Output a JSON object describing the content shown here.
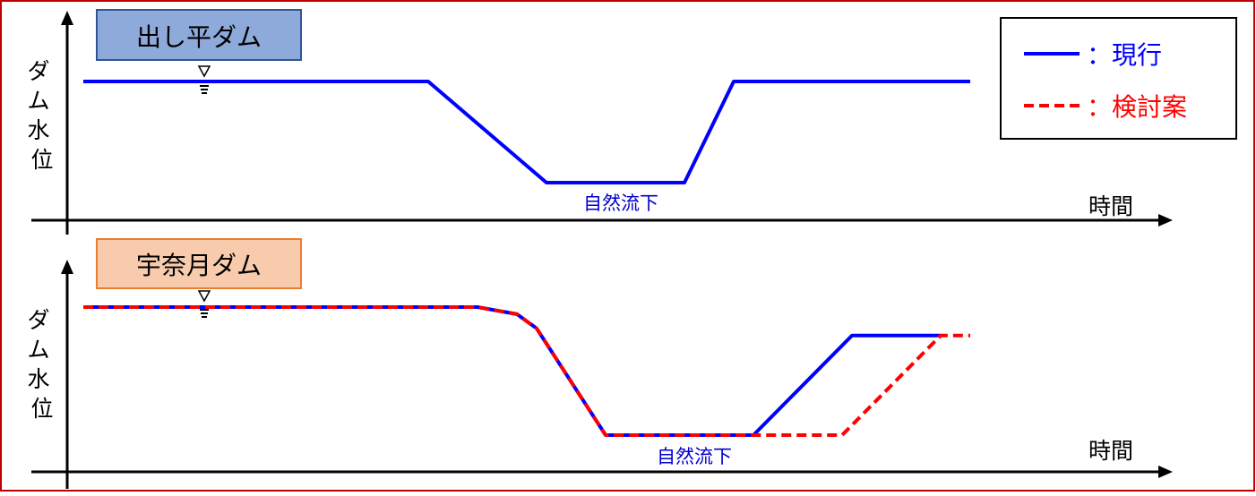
{
  "colors": {
    "frame": "#c00000",
    "current": "#0000ff",
    "proposal": "#ff0000",
    "axis": "#000000",
    "dashi_label_fill": "#8eaadb",
    "dashi_label_stroke": "#2f5597",
    "unazuki_label_fill": "#f8cbad",
    "unazuki_label_stroke": "#ed7d31",
    "annotation_text": "#0000cc"
  },
  "legend": {
    "current_label": "：現行",
    "proposal_label": "：検討案"
  },
  "chart_data": [
    {
      "type": "line",
      "title": "出し平ダム",
      "xlabel": "時間",
      "ylabel": "ダム水位",
      "annotation": "自然流下",
      "series": [
        {
          "name": "：現行",
          "points": [
            [
              0,
              100
            ],
            [
              35,
              100
            ],
            [
              47,
              10
            ],
            [
              61,
              10
            ],
            [
              66,
              100
            ],
            [
              90,
              100
            ]
          ]
        }
      ]
    },
    {
      "type": "line",
      "title": "宇奈月ダム",
      "xlabel": "時間",
      "ylabel": "ダム水位",
      "annotation": "自然流下",
      "series": [
        {
          "name": "：現行",
          "points": [
            [
              0,
              100
            ],
            [
              40,
              100
            ],
            [
              44,
              95
            ],
            [
              46,
              85
            ],
            [
              53,
              10
            ],
            [
              68,
              10
            ],
            [
              78,
              80
            ],
            [
              87,
              80
            ]
          ]
        },
        {
          "name": "：検討案",
          "points": [
            [
              0,
              100
            ],
            [
              40,
              100
            ],
            [
              44,
              95
            ],
            [
              46,
              85
            ],
            [
              53,
              10
            ],
            [
              68,
              10
            ],
            [
              77,
              10
            ],
            [
              87,
              80
            ],
            [
              90,
              80
            ]
          ]
        }
      ]
    }
  ]
}
